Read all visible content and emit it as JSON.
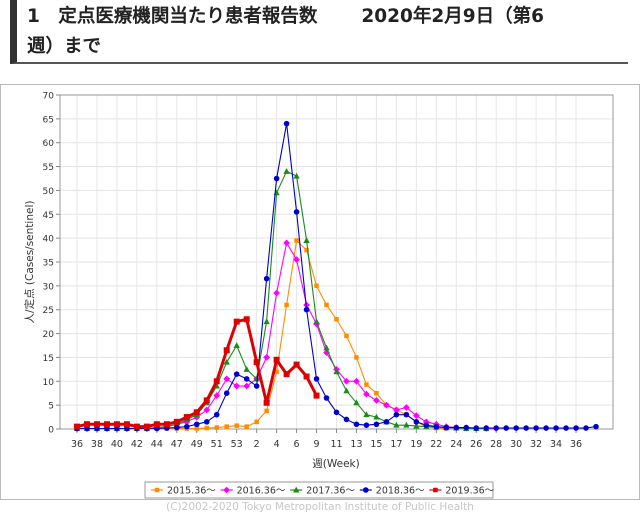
{
  "header": {
    "number": "1",
    "title": "定点医療機関当たり患者報告数",
    "date": "2020年2月9日（第6",
    "continuation": "週）まで"
  },
  "footer": {
    "copyright": "(C)2002-2020 Tokyo Metropolitan Institute of Public Health"
  },
  "chart_data": {
    "type": "line",
    "title": "",
    "xlabel": "週(Week)",
    "ylabel": "人/定点 (Cases/sentinel)",
    "ylim": [
      0,
      70
    ],
    "yticks": [
      "0",
      "5",
      "10",
      "15",
      "20",
      "25",
      "30",
      "35",
      "40",
      "45",
      "50",
      "55",
      "60",
      "65",
      "70"
    ],
    "xticks": [
      "36",
      "38",
      "40",
      "42",
      "44",
      "47",
      "49",
      "51",
      "53",
      "2",
      "4",
      "6",
      "9",
      "11",
      "13",
      "15",
      "17",
      "19",
      "22",
      "24",
      "26",
      "28",
      "30",
      "32",
      "34",
      "36"
    ],
    "x": [
      "36",
      "37",
      "38",
      "39",
      "40",
      "41",
      "42",
      "43",
      "44",
      "45",
      "46",
      "47",
      "48",
      "49",
      "50",
      "51",
      "52",
      "53",
      "1",
      "2",
      "3",
      "4",
      "5",
      "6",
      "7",
      "8",
      "9",
      "10",
      "11",
      "12",
      "13",
      "14",
      "15",
      "16",
      "17",
      "18",
      "19",
      "20",
      "21",
      "22",
      "23",
      "24",
      "25",
      "26",
      "27",
      "28",
      "29",
      "30",
      "31",
      "32",
      "33",
      "34",
      "35"
    ],
    "grid": true,
    "legend_position": "bottom",
    "series": [
      {
        "name": "2015.36～",
        "color": "#ff8c00",
        "marker": "square",
        "values": [
          0.1,
          0.1,
          0.1,
          0.1,
          0.1,
          0.1,
          0.1,
          0.1,
          0.1,
          0.1,
          0.1,
          0.1,
          0.1,
          0.2,
          0.3,
          0.5,
          0.7,
          0.5,
          1.5,
          3.8,
          12,
          26,
          39.5,
          37.5,
          30,
          26,
          23,
          19.5,
          15,
          9.3,
          7.5,
          5,
          4,
          3,
          1.5,
          0.5,
          0.2,
          0.1,
          null,
          null,
          null,
          null,
          null,
          null,
          null,
          null,
          null,
          null,
          null,
          null,
          null,
          null,
          null
        ]
      },
      {
        "name": "2016.36～",
        "color": "#ff00ff",
        "marker": "diamond",
        "values": [
          0.1,
          0.1,
          0.1,
          0.1,
          0.1,
          0.1,
          0.1,
          0.1,
          0.3,
          0.5,
          1,
          1.5,
          2.5,
          4,
          7,
          10.5,
          9,
          9,
          10.5,
          15,
          28.5,
          39,
          35.5,
          26,
          22,
          16,
          12.5,
          10,
          10,
          7.3,
          6,
          5,
          4,
          4.5,
          2.8,
          1.5,
          1,
          0.5,
          0.3,
          0.2,
          0.1,
          0.1,
          0.1,
          null,
          null,
          null,
          null,
          null,
          null,
          null,
          null,
          null,
          null
        ]
      },
      {
        "name": "2017.36～",
        "color": "#1a8a1a",
        "marker": "triangle",
        "values": [
          0.1,
          0.1,
          0.1,
          0.1,
          0.1,
          0.1,
          0.1,
          0.1,
          0.3,
          0.5,
          1,
          2,
          3,
          5.5,
          9,
          14,
          17.5,
          12.5,
          10.5,
          22.5,
          49.5,
          54,
          53,
          39.5,
          22.5,
          17,
          12,
          8,
          5.5,
          3,
          2.5,
          1.5,
          0.8,
          0.8,
          0.6,
          0.5,
          0.4,
          0.3,
          0.2,
          0.1,
          0.1,
          0.1,
          null,
          null,
          null,
          null,
          null,
          null,
          null,
          null,
          null,
          null,
          null
        ]
      },
      {
        "name": "2018.36～",
        "color": "#0000cc",
        "marker": "circle",
        "values": [
          0.1,
          0.1,
          0.1,
          0.1,
          0.1,
          0.1,
          0.1,
          0.1,
          0.1,
          0.2,
          0.3,
          0.5,
          1,
          1.5,
          3,
          7.5,
          11.5,
          10.5,
          9,
          31.5,
          52.5,
          64,
          45.5,
          25,
          10.5,
          6.5,
          3.5,
          2,
          1,
          0.8,
          1,
          1.5,
          3,
          3,
          1.5,
          0.8,
          0.5,
          0.3,
          0.3,
          0.3,
          0.2,
          0.2,
          0.2,
          0.2,
          0.2,
          0.2,
          0.2,
          0.2,
          0.2,
          0.2,
          0.2,
          0.2,
          0.5
        ]
      },
      {
        "name": "2019.36～",
        "color": "#dd0000",
        "marker": "square",
        "values": [
          0.5,
          1,
          1,
          1,
          1,
          1,
          0.5,
          0.5,
          1,
          1,
          1.5,
          2.5,
          3.5,
          6,
          10,
          16.5,
          22.5,
          23,
          14,
          5.5,
          14.5,
          11.5,
          13.5,
          11,
          7,
          null,
          null,
          null,
          null,
          null,
          null,
          null,
          null,
          null,
          null,
          null,
          null,
          null,
          null,
          null,
          null,
          null,
          null,
          null,
          null,
          null,
          null,
          null,
          null,
          null,
          null,
          null,
          null
        ]
      }
    ]
  }
}
